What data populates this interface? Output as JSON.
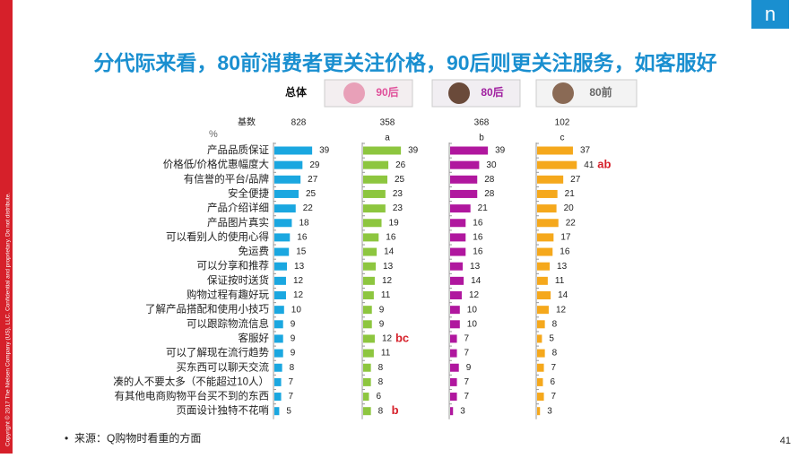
{
  "title": "分代际来看，80前消费者更关注价格，90后则更关注服务，如客服好",
  "base_label": "基数",
  "unit": "%",
  "source": "来源：Q购物时看重的方面",
  "page_number": "41",
  "copyright": "Copyright © 2017 The Nielsen Company (US), LLC. Confidential and proprietary. Do not distribute.",
  "logo": "n",
  "chart_data": [
    {
      "type": "bar",
      "name": "总体",
      "base": 828,
      "color": "#1aa7e0",
      "categories": [
        "产品品质保证",
        "价格低/价格优惠幅度大",
        "有信誉的平台/品牌",
        "安全便捷",
        "产品介绍详细",
        "产品图片真实",
        "可以看别人的使用心得",
        "免运费",
        "可以分享和推荐",
        "保证按时送货",
        "购物过程有趣好玩",
        "了解产品搭配和使用小技巧",
        "可以跟踪物流信息",
        "客服好",
        "可以了解现在流行趋势",
        "买东西可以聊天交流",
        "凑的人不要太多（不能超过10人）",
        "有其他电商购物平台买不到的东西",
        "页面设计独特不花哨"
      ],
      "values": [
        39,
        29,
        27,
        25,
        22,
        18,
        16,
        15,
        13,
        12,
        12,
        10,
        9,
        9,
        9,
        8,
        7,
        7,
        5
      ]
    },
    {
      "type": "bar",
      "name": "90后",
      "base": 358,
      "letter": "a",
      "color": "#8dc63f",
      "values": [
        39,
        26,
        25,
        23,
        23,
        19,
        16,
        14,
        13,
        12,
        11,
        9,
        9,
        12,
        11,
        8,
        8,
        6,
        8
      ],
      "significance": [
        null,
        null,
        null,
        null,
        null,
        null,
        null,
        null,
        null,
        null,
        null,
        null,
        null,
        "bc",
        null,
        null,
        null,
        null,
        "b"
      ]
    },
    {
      "type": "bar",
      "name": "80后",
      "base": 368,
      "letter": "b",
      "color": "#b0179e",
      "values": [
        39,
        30,
        28,
        28,
        21,
        16,
        16,
        16,
        13,
        14,
        12,
        10,
        10,
        7,
        7,
        9,
        7,
        7,
        3
      ]
    },
    {
      "type": "bar",
      "name": "80前",
      "base": 102,
      "letter": "c",
      "color": "#f5a81c",
      "values": [
        37,
        41,
        27,
        21,
        20,
        22,
        17,
        16,
        13,
        11,
        14,
        12,
        8,
        5,
        8,
        7,
        6,
        7,
        3
      ],
      "significance": [
        null,
        "ab",
        null,
        null,
        null,
        null,
        null,
        null,
        null,
        null,
        null,
        null,
        null,
        null,
        null,
        null,
        null,
        null,
        null
      ]
    }
  ]
}
